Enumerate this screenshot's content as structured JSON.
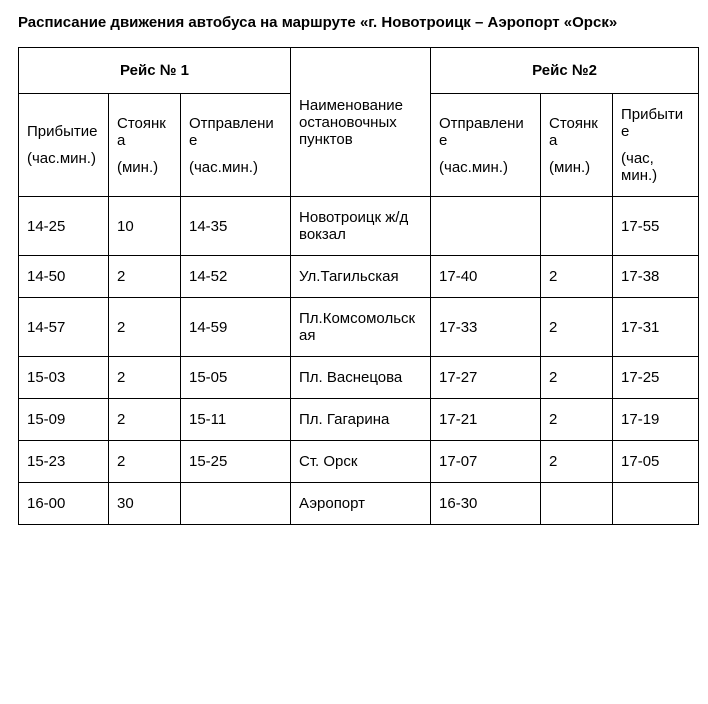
{
  "title": "Расписание движения автобуса на маршруте  «г. Новотроицк – Аэропорт «Орск»",
  "headers": {
    "trip1": "Рейс № 1",
    "trip2": "Рейс №2",
    "stops": "Наименование остановочных пунктов",
    "arrival": "Прибытие",
    "arrival_unit": "(час.мин.)",
    "stop": "Стоянка",
    "stop_unit": "(мин.)",
    "departure": "Отправление",
    "departure_unit": "(час.мин.)",
    "arrival2_unit": "(час, мин.)"
  },
  "rows": [
    {
      "a1": "14-25",
      "s1": "10",
      "d1": "14-35",
      "name": "Новотроицк ж/д вокзал",
      "d2": "",
      "s2": "",
      "a2": "17-55"
    },
    {
      "a1": "14-50",
      "s1": "2",
      "d1": "14-52",
      "name": "Ул.Тагильская",
      "d2": "17-40",
      "s2": "2",
      "a2": "17-38"
    },
    {
      "a1": "14-57",
      "s1": "2",
      "d1": "14-59",
      "name": "Пл.Комсомольская",
      "d2": "17-33",
      "s2": "2",
      "a2": "17-31"
    },
    {
      "a1": "15-03",
      "s1": "2",
      "d1": "15-05",
      "name": "Пл. Васнецова",
      "d2": "17-27",
      "s2": "2",
      "a2": "17-25"
    },
    {
      "a1": "15-09",
      "s1": "2",
      "d1": "15-11",
      "name": "Пл. Гагарина",
      "d2": "17-21",
      "s2": "2",
      "a2": "17-19"
    },
    {
      "a1": "15-23",
      "s1": "2",
      "d1": "15-25",
      "name": "Ст. Орск",
      "d2": "17-07",
      "s2": "2",
      "a2": "17-05"
    },
    {
      "a1": "16-00",
      "s1": "30",
      "d1": "",
      "name": "Аэропорт",
      "d2": "16-30",
      "s2": "",
      "a2": ""
    }
  ]
}
